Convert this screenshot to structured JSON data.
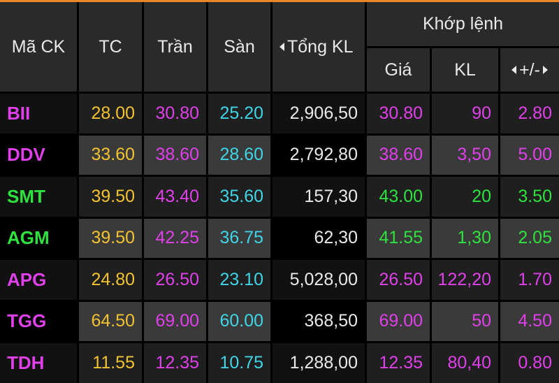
{
  "header": {
    "symbol": "Mã CK",
    "ref": "TC",
    "ceiling": "Trần",
    "floor": "Sàn",
    "total_volume": "Tổng KL",
    "matched": "Khớp lệnh",
    "price": "Giá",
    "volume": "KL",
    "change": "+/-"
  },
  "colors": {
    "ref": "#f2c230",
    "ceiling": "#e040ea",
    "floor": "#3fd5e6",
    "up": "#2fe23f",
    "white": "#e9e9e9"
  },
  "rows": [
    {
      "symbol": "BII",
      "tc": "28.00",
      "tran": "30.80",
      "san": "25.20",
      "tong_kl": "2,906,50",
      "gia": "30.80",
      "kl": "90",
      "change": "2.80",
      "state": "ceiling"
    },
    {
      "symbol": "DDV",
      "tc": "33.60",
      "tran": "38.60",
      "san": "28.60",
      "tong_kl": "2,792,80",
      "gia": "38.60",
      "kl": "3,50",
      "change": "5.00",
      "state": "ceiling"
    },
    {
      "symbol": "SMT",
      "tc": "39.50",
      "tran": "43.40",
      "san": "35.60",
      "tong_kl": "157,30",
      "gia": "43.00",
      "kl": "20",
      "change": "3.50",
      "state": "up"
    },
    {
      "symbol": "AGM",
      "tc": "39.50",
      "tran": "42.25",
      "san": "36.75",
      "tong_kl": "62,30",
      "gia": "41.55",
      "kl": "1,30",
      "change": "2.05",
      "state": "up"
    },
    {
      "symbol": "APG",
      "tc": "24.80",
      "tran": "26.50",
      "san": "23.10",
      "tong_kl": "5,028,00",
      "gia": "26.50",
      "kl": "122,20",
      "change": "1.70",
      "state": "ceiling"
    },
    {
      "symbol": "TGG",
      "tc": "64.50",
      "tran": "69.00",
      "san": "60.00",
      "tong_kl": "368,50",
      "gia": "69.00",
      "kl": "50",
      "change": "4.50",
      "state": "ceiling"
    },
    {
      "symbol": "TDH",
      "tc": "11.55",
      "tran": "12.35",
      "san": "10.75",
      "tong_kl": "1,288,00",
      "gia": "12.35",
      "kl": "80,40",
      "change": "0.80",
      "state": "ceiling"
    }
  ]
}
